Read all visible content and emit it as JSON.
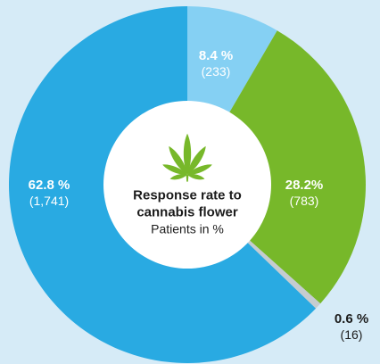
{
  "chart_data": {
    "type": "pie",
    "title": "Response rate to cannabis flower",
    "subtitle": "Patients in %",
    "slices": [
      {
        "label_pct": "8.4 %",
        "label_count": "(233)",
        "value": 8.4,
        "count": 233,
        "color": "#85d0f3"
      },
      {
        "label_pct": "28.2%",
        "label_count": "(783)",
        "value": 28.2,
        "count": 783,
        "color": "#77b82a"
      },
      {
        "label_pct": "0.6 %",
        "label_count": "(16)",
        "value": 0.6,
        "count": 16,
        "color": "#c5ccd0"
      },
      {
        "label_pct": "62.8 %",
        "label_count": "(1,741)",
        "value": 62.8,
        "count": 1741,
        "color": "#29aae2"
      }
    ]
  },
  "center": {
    "title_line1": "Response rate to",
    "title_line2": "cannabis flower",
    "subtitle": "Patients in %",
    "icon": "cannabis-leaf-icon",
    "icon_color": "#77b82a"
  },
  "colors": {
    "background": "#d6ebf7",
    "hole": "#ffffff"
  }
}
